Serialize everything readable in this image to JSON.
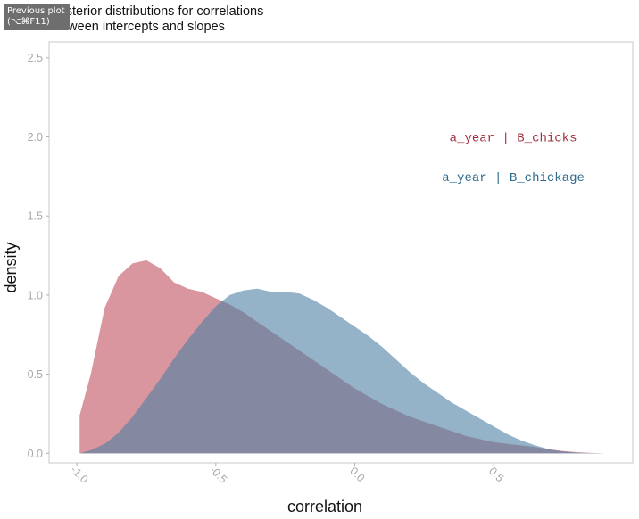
{
  "tooltip": {
    "line1": "Previous plot",
    "line2": "(⌥⌘F11)"
  },
  "chart_data": {
    "type": "area",
    "title_lines": [
      "Posterior distributions for correlations",
      "between intercepts and slopes"
    ],
    "xlabel": "correlation",
    "ylabel": "density",
    "xlim": [
      -1.1,
      1.0
    ],
    "ylim": [
      -0.06,
      2.6
    ],
    "x_ticks": [
      -1.0,
      -0.5,
      0.0,
      0.5
    ],
    "x_tick_labels": [
      "-1.0",
      "-0.5",
      "0.0",
      "0.5"
    ],
    "y_ticks": [
      0.0,
      0.5,
      1.0,
      1.5,
      2.0,
      2.5
    ],
    "y_tick_labels": [
      "0.0",
      "0.5",
      "1.0",
      "1.5",
      "2.0",
      "2.5"
    ],
    "grid": false,
    "series": [
      {
        "name": "a_year | B_chicks",
        "color": "#c0505f",
        "x": [
          -0.99,
          -0.99,
          -0.95,
          -0.9,
          -0.85,
          -0.8,
          -0.75,
          -0.7,
          -0.65,
          -0.6,
          -0.55,
          -0.5,
          -0.45,
          -0.4,
          -0.35,
          -0.3,
          -0.25,
          -0.2,
          -0.15,
          -0.1,
          -0.05,
          0.0,
          0.05,
          0.1,
          0.15,
          0.2,
          0.25,
          0.3,
          0.35,
          0.4,
          0.45,
          0.5,
          0.55,
          0.6,
          0.65,
          0.7,
          0.75,
          0.8,
          0.85,
          0.9
        ],
        "y": [
          0.0,
          0.24,
          0.5,
          0.92,
          1.12,
          1.2,
          1.22,
          1.17,
          1.08,
          1.04,
          1.02,
          0.98,
          0.94,
          0.89,
          0.83,
          0.77,
          0.71,
          0.65,
          0.59,
          0.53,
          0.47,
          0.41,
          0.36,
          0.31,
          0.27,
          0.23,
          0.2,
          0.17,
          0.14,
          0.11,
          0.09,
          0.07,
          0.06,
          0.05,
          0.04,
          0.025,
          0.015,
          0.007,
          0.003,
          0.0
        ]
      },
      {
        "name": "a_year | B_chickage",
        "color": "#4d7fa3",
        "x": [
          -0.99,
          -0.95,
          -0.9,
          -0.85,
          -0.8,
          -0.75,
          -0.7,
          -0.65,
          -0.6,
          -0.55,
          -0.5,
          -0.45,
          -0.4,
          -0.35,
          -0.3,
          -0.25,
          -0.2,
          -0.15,
          -0.1,
          -0.05,
          0.0,
          0.05,
          0.1,
          0.15,
          0.2,
          0.25,
          0.3,
          0.35,
          0.4,
          0.45,
          0.5,
          0.55,
          0.6,
          0.65,
          0.7,
          0.75,
          0.8,
          0.85,
          0.9
        ],
        "y": [
          0.0,
          0.02,
          0.06,
          0.13,
          0.23,
          0.35,
          0.47,
          0.6,
          0.72,
          0.83,
          0.93,
          1.0,
          1.03,
          1.04,
          1.02,
          1.02,
          1.01,
          0.97,
          0.92,
          0.86,
          0.8,
          0.74,
          0.67,
          0.59,
          0.51,
          0.44,
          0.38,
          0.32,
          0.27,
          0.22,
          0.17,
          0.12,
          0.08,
          0.05,
          0.025,
          0.012,
          0.005,
          0.002,
          0.0
        ]
      }
    ],
    "annotations": [
      {
        "text": "a_year | B_chicks",
        "x": 0.57,
        "y": 2.0,
        "color": "#a5303f"
      },
      {
        "text": "a_year | B_chickage",
        "x": 0.57,
        "y": 1.75,
        "color": "#2d6a8e"
      }
    ]
  }
}
